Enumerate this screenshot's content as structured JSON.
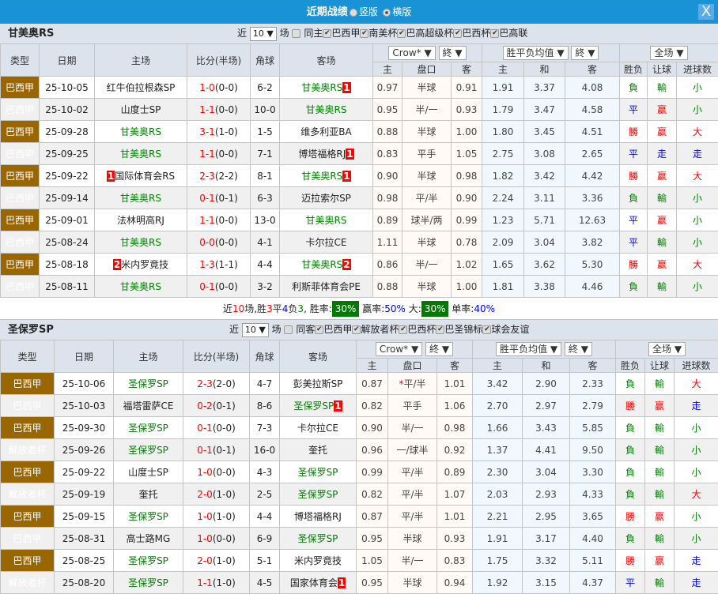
{
  "title": {
    "label": "近期战绩",
    "opt_vertical": "竖版",
    "opt_horizontal": "横版",
    "selected": "横版",
    "close": "X"
  },
  "colors": {
    "brazil_a": "#996600",
    "libertadores": "#8aad15",
    "title_bar": "#1a93d6",
    "win": "#ff0000",
    "lose": "#008000",
    "draw": "#0000ff"
  },
  "headers": {
    "type": "类型",
    "date": "日期",
    "home": "主场",
    "score": "比分(半场)",
    "corners": "角球",
    "away": "客场",
    "ah_home": "主",
    "ah_line": "盘口",
    "ah_away": "客",
    "eu_home": "主",
    "eu_draw": "和",
    "eu_away": "客",
    "wl": "胜负",
    "hcp": "让球",
    "goals": "进球数",
    "company": "Crow*",
    "final1": "終",
    "avg": "胜平负均值",
    "final2": "終",
    "scope": "全场"
  },
  "sections": [
    {
      "team": "甘美奥RS",
      "near": "近",
      "count": "10",
      "unit": "场",
      "venue": "同主",
      "filters": [
        "巴西甲",
        "南美杯",
        "巴高超级杯",
        "巴西杯",
        "巴高联"
      ],
      "rows": [
        {
          "type": "巴西甲",
          "date": "25-10-05",
          "home": "红牛伯拉根森SP",
          "hc": "",
          "score": "1-0",
          "half": "(0-0)",
          "corners": "6-2",
          "away": "甘美奥RS",
          "ac": "1",
          "o": [
            "0.97",
            "半球",
            "0.91",
            "1.91",
            "3.37",
            "4.08"
          ],
          "wl": "負",
          "hcp": "輸",
          "goals": "小"
        },
        {
          "type": "巴西甲",
          "date": "25-10-02",
          "home": "山度士SP",
          "hc": "",
          "score": "1-1",
          "half": "(0-0)",
          "corners": "10-0",
          "away": "甘美奥RS",
          "ac": "",
          "o": [
            "0.95",
            "半/一",
            "0.93",
            "1.79",
            "3.47",
            "4.58"
          ],
          "wl": "平",
          "hcp": "赢",
          "goals": "小"
        },
        {
          "type": "巴西甲",
          "date": "25-09-28",
          "home": "甘美奥RS",
          "hc": "",
          "score": "3-1",
          "half": "(1-0)",
          "corners": "1-5",
          "away": "维多利亚BA",
          "ac": "",
          "o": [
            "0.88",
            "半球",
            "1.00",
            "1.80",
            "3.45",
            "4.51"
          ],
          "wl": "勝",
          "hcp": "赢",
          "goals": "大"
        },
        {
          "type": "巴西甲",
          "date": "25-09-25",
          "home": "甘美奥RS",
          "hc": "",
          "score": "1-1",
          "half": "(0-0)",
          "corners": "7-1",
          "away": "博塔福格RJ",
          "ac": "1",
          "o": [
            "0.83",
            "平手",
            "1.05",
            "2.75",
            "3.08",
            "2.65"
          ],
          "wl": "平",
          "hcp": "走",
          "goals": "走"
        },
        {
          "type": "巴西甲",
          "date": "25-09-22",
          "home": "国际体育会RS",
          "hc": "1",
          "score": "2-3",
          "half": "(2-2)",
          "corners": "8-1",
          "away": "甘美奥RS",
          "ac": "1",
          "o": [
            "0.90",
            "半球",
            "0.98",
            "1.82",
            "3.42",
            "4.42"
          ],
          "wl": "勝",
          "hcp": "赢",
          "goals": "大"
        },
        {
          "type": "巴西甲",
          "date": "25-09-14",
          "home": "甘美奥RS",
          "hc": "",
          "score": "0-1",
          "half": "(0-1)",
          "corners": "6-3",
          "away": "迈拉索尔SP",
          "ac": "",
          "o": [
            "0.98",
            "平/半",
            "0.90",
            "2.24",
            "3.11",
            "3.36"
          ],
          "wl": "負",
          "hcp": "輸",
          "goals": "小"
        },
        {
          "type": "巴西甲",
          "date": "25-09-01",
          "home": "法林明高RJ",
          "hc": "",
          "score": "1-1",
          "half": "(0-0)",
          "corners": "13-0",
          "away": "甘美奥RS",
          "ac": "",
          "o": [
            "0.89",
            "球半/两",
            "0.99",
            "1.23",
            "5.71",
            "12.63"
          ],
          "wl": "平",
          "hcp": "赢",
          "goals": "小"
        },
        {
          "type": "巴西甲",
          "date": "25-08-24",
          "home": "甘美奥RS",
          "hc": "",
          "score": "0-0",
          "half": "(0-0)",
          "corners": "4-1",
          "away": "卡尔拉CE",
          "ac": "",
          "o": [
            "1.11",
            "半球",
            "0.78",
            "2.09",
            "3.04",
            "3.82"
          ],
          "wl": "平",
          "hcp": "輸",
          "goals": "小"
        },
        {
          "type": "巴西甲",
          "date": "25-08-18",
          "home": "米内罗竟技",
          "hc": "2",
          "score": "1-3",
          "half": "(1-1)",
          "corners": "4-4",
          "away": "甘美奥RS",
          "ac": "2",
          "o": [
            "0.86",
            "半/一",
            "1.02",
            "1.65",
            "3.62",
            "5.30"
          ],
          "wl": "勝",
          "hcp": "赢",
          "goals": "大"
        },
        {
          "type": "巴西甲",
          "date": "25-08-11",
          "home": "甘美奥RS",
          "hc": "",
          "score": "0-1",
          "half": "(0-0)",
          "corners": "3-2",
          "away": "利斯菲体育会PE",
          "ac": "",
          "o": [
            "0.88",
            "半球",
            "1.00",
            "1.81",
            "3.38",
            "4.46"
          ],
          "wl": "負",
          "hcp": "輸",
          "goals": "小"
        }
      ],
      "summary": {
        "p1": "近",
        "n": "10",
        "p2": "场,胜",
        "w": "3",
        "p3": "平",
        "d": "4",
        "p4": "负",
        "l": "3",
        "p5": ", 胜率:",
        "win_rate": "30%",
        "p6": " 赢率:",
        "hcp_rate": "50%",
        "p7": " 大:",
        "over_rate": "30%",
        "p8": " 单率:",
        "odd_rate": "40%"
      }
    },
    {
      "team": "圣保罗SP",
      "near": "近",
      "count": "10",
      "unit": "场",
      "venue": "同客",
      "filters": [
        "巴西甲",
        "解放者杯",
        "巴西杯",
        "巴圣锦标",
        "球会友谊"
      ],
      "rows": [
        {
          "type": "巴西甲",
          "date": "25-10-06",
          "home": "圣保罗SP",
          "hc": "",
          "score": "2-3",
          "half": "(2-0)",
          "corners": "4-7",
          "away": "彭美拉斯SP",
          "ac": "",
          "o": [
            "0.87",
            "*平/半",
            "1.01",
            "3.42",
            "2.90",
            "2.33"
          ],
          "wl": "負",
          "hcp": "輸",
          "goals": "大"
        },
        {
          "type": "巴西甲",
          "date": "25-10-03",
          "home": "福塔雷萨CE",
          "hc": "",
          "score": "0-2",
          "half": "(0-1)",
          "corners": "8-6",
          "away": "圣保罗SP",
          "ac": "1",
          "o": [
            "0.82",
            "平手",
            "1.06",
            "2.70",
            "2.97",
            "2.79"
          ],
          "wl": "勝",
          "hcp": "赢",
          "goals": "走"
        },
        {
          "type": "巴西甲",
          "date": "25-09-30",
          "home": "圣保罗SP",
          "hc": "",
          "score": "0-1",
          "half": "(0-0)",
          "corners": "7-3",
          "away": "卡尔拉CE",
          "ac": "",
          "o": [
            "0.90",
            "半/一",
            "0.98",
            "1.66",
            "3.43",
            "5.85"
          ],
          "wl": "負",
          "hcp": "輸",
          "goals": "小"
        },
        {
          "type": "解放者杯",
          "date": "25-09-26",
          "home": "圣保罗SP",
          "hc": "",
          "score": "0-1",
          "half": "(0-1)",
          "corners": "16-0",
          "away": "奎托",
          "ac": "",
          "o": [
            "0.96",
            "一/球半",
            "0.92",
            "1.37",
            "4.41",
            "9.50"
          ],
          "wl": "負",
          "hcp": "輸",
          "goals": "小"
        },
        {
          "type": "巴西甲",
          "date": "25-09-22",
          "home": "山度士SP",
          "hc": "",
          "score": "1-0",
          "half": "(0-0)",
          "corners": "4-3",
          "away": "圣保罗SP",
          "ac": "",
          "o": [
            "0.99",
            "平/半",
            "0.89",
            "2.30",
            "3.04",
            "3.30"
          ],
          "wl": "負",
          "hcp": "輸",
          "goals": "小"
        },
        {
          "type": "解放者杯",
          "date": "25-09-19",
          "home": "奎托",
          "hc": "",
          "score": "2-0",
          "half": "(1-0)",
          "corners": "2-5",
          "away": "圣保罗SP",
          "ac": "",
          "o": [
            "0.82",
            "平/半",
            "1.07",
            "2.03",
            "2.93",
            "4.33"
          ],
          "wl": "負",
          "hcp": "輸",
          "goals": "大"
        },
        {
          "type": "巴西甲",
          "date": "25-09-15",
          "home": "圣保罗SP",
          "hc": "",
          "score": "1-0",
          "half": "(1-0)",
          "corners": "4-4",
          "away": "博塔福格RJ",
          "ac": "",
          "o": [
            "0.87",
            "平/半",
            "1.01",
            "2.21",
            "2.95",
            "3.65"
          ],
          "wl": "勝",
          "hcp": "赢",
          "goals": "小"
        },
        {
          "type": "巴西甲",
          "date": "25-08-31",
          "home": "高士路MG",
          "hc": "",
          "score": "1-0",
          "half": "(0-0)",
          "corners": "6-9",
          "away": "圣保罗SP",
          "ac": "",
          "o": [
            "0.95",
            "半球",
            "0.93",
            "1.91",
            "3.17",
            "4.40"
          ],
          "wl": "負",
          "hcp": "輸",
          "goals": "小"
        },
        {
          "type": "巴西甲",
          "date": "25-08-25",
          "home": "圣保罗SP",
          "hc": "",
          "score": "2-0",
          "half": "(1-0)",
          "corners": "5-1",
          "away": "米内罗竟技",
          "ac": "",
          "o": [
            "1.05",
            "半/一",
            "0.83",
            "1.75",
            "3.32",
            "5.11"
          ],
          "wl": "勝",
          "hcp": "赢",
          "goals": "走"
        },
        {
          "type": "解放者杯",
          "date": "25-08-20",
          "home": "圣保罗SP",
          "hc": "",
          "score": "1-1",
          "half": "(1-0)",
          "corners": "4-5",
          "away": "国家体育会",
          "ac": "1",
          "o": [
            "0.95",
            "半球",
            "0.94",
            "1.92",
            "3.15",
            "4.37"
          ],
          "wl": "平",
          "hcp": "輸",
          "goals": "走"
        }
      ]
    }
  ]
}
